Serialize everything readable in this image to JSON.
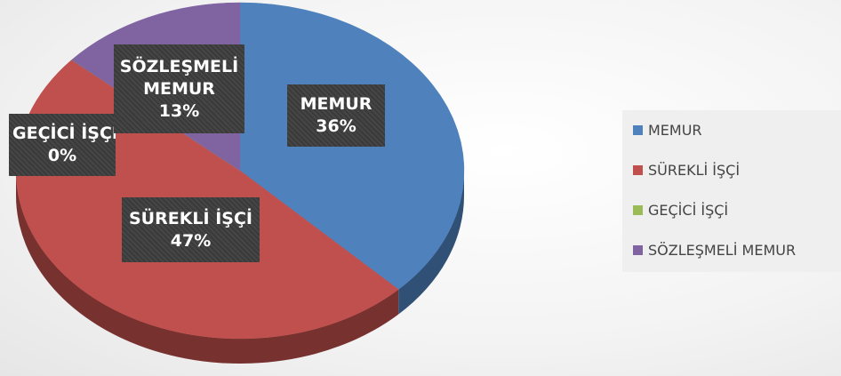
{
  "chart_data": {
    "type": "pie",
    "categories": [
      "MEMUR",
      "SÜREKLİ İŞÇİ",
      "GEÇİCİ İŞÇİ",
      "SÖZLEŞMELİ MEMUR"
    ],
    "values": [
      36,
      47,
      0,
      13
    ],
    "value_labels": [
      "36%",
      "47%",
      "0%",
      "13%"
    ],
    "colors": [
      "#4f81bd",
      "#c0504d",
      "#9bbb59",
      "#8064a2"
    ],
    "legend": "right"
  }
}
